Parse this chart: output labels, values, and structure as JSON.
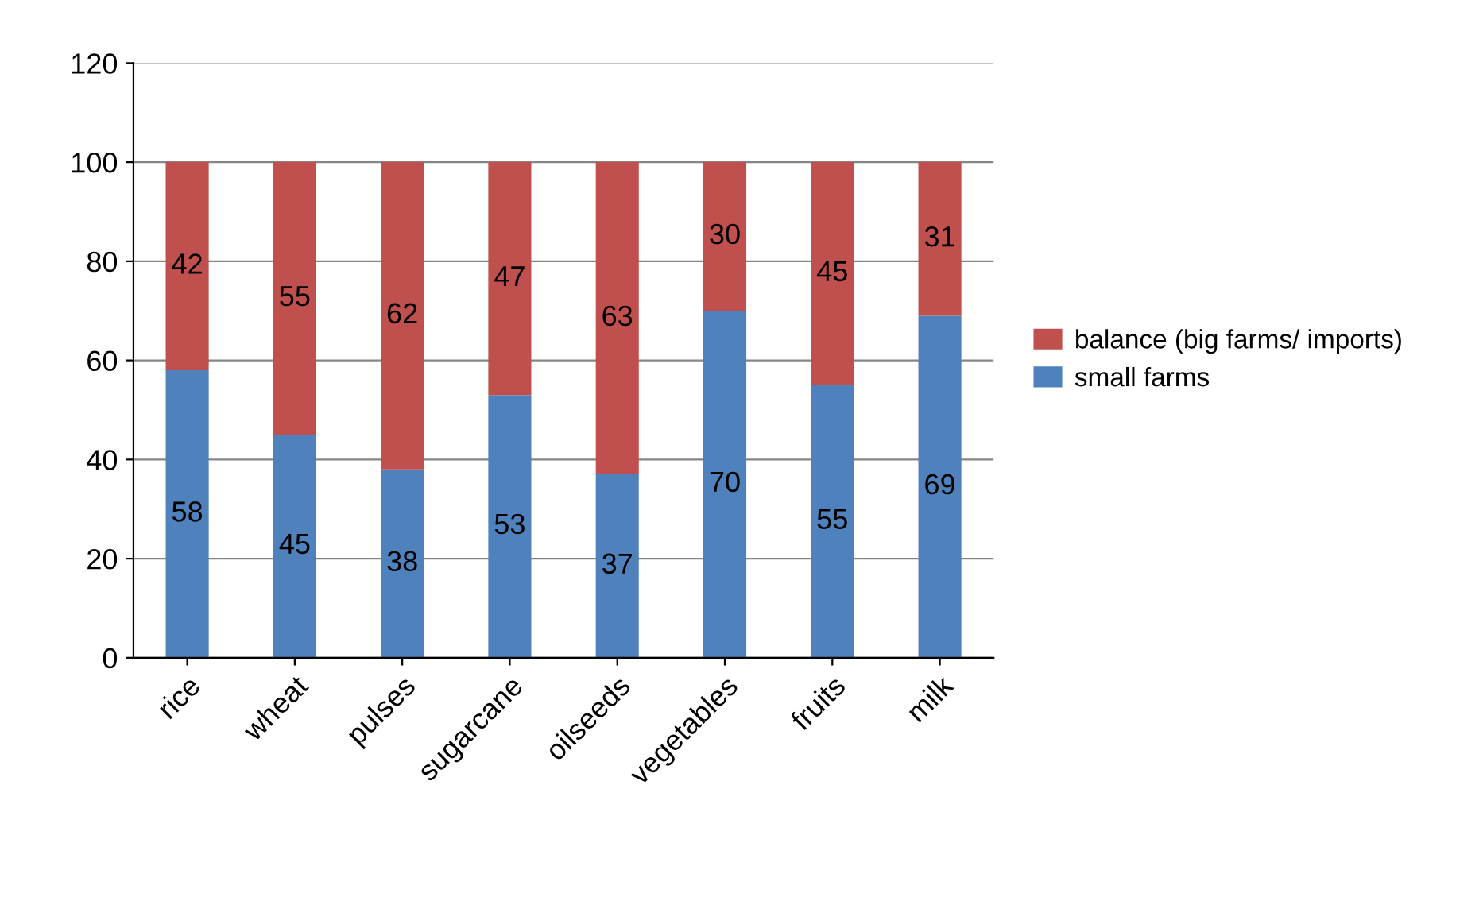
{
  "chart_data": {
    "type": "bar",
    "stacked": true,
    "categories": [
      "rice",
      "wheat",
      "pulses",
      "sugarcane",
      "oilseeds",
      "vegetables",
      "fruits",
      "milk"
    ],
    "series": [
      {
        "name": "small farms",
        "color": "#4f81bd",
        "values": [
          58,
          45,
          38,
          53,
          37,
          70,
          55,
          69
        ]
      },
      {
        "name": "balance (big farms/ imports)",
        "color": "#c0504d",
        "values": [
          42,
          55,
          62,
          47,
          63,
          30,
          45,
          31
        ]
      }
    ],
    "ylim": [
      0,
      120
    ],
    "yticks": [
      0,
      20,
      40,
      60,
      80,
      100,
      120
    ],
    "grid": "y",
    "legend": "right",
    "data_labels": true
  }
}
